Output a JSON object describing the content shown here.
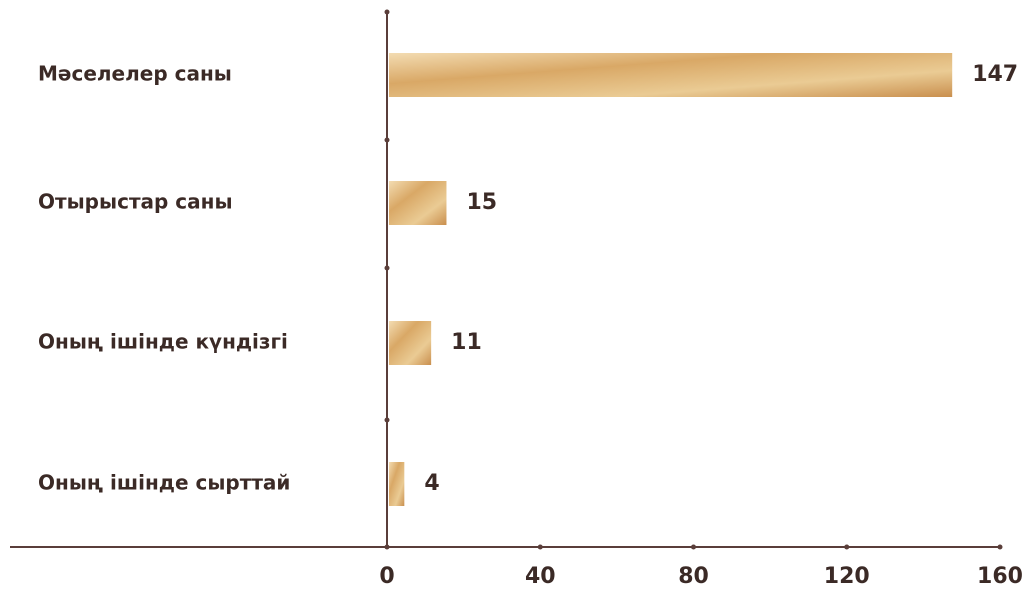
{
  "chart_data": {
    "type": "bar",
    "orientation": "horizontal",
    "categories": [
      "Мәселелер саны",
      "Отырыстар саны",
      "Оның ішінде күндізгі",
      "Оның ішінде сырттай"
    ],
    "values": [
      147,
      15,
      11,
      4
    ],
    "color": "#d9a866",
    "xlim": [
      0,
      160
    ],
    "xticks": [
      0,
      40,
      80,
      120,
      160
    ]
  }
}
